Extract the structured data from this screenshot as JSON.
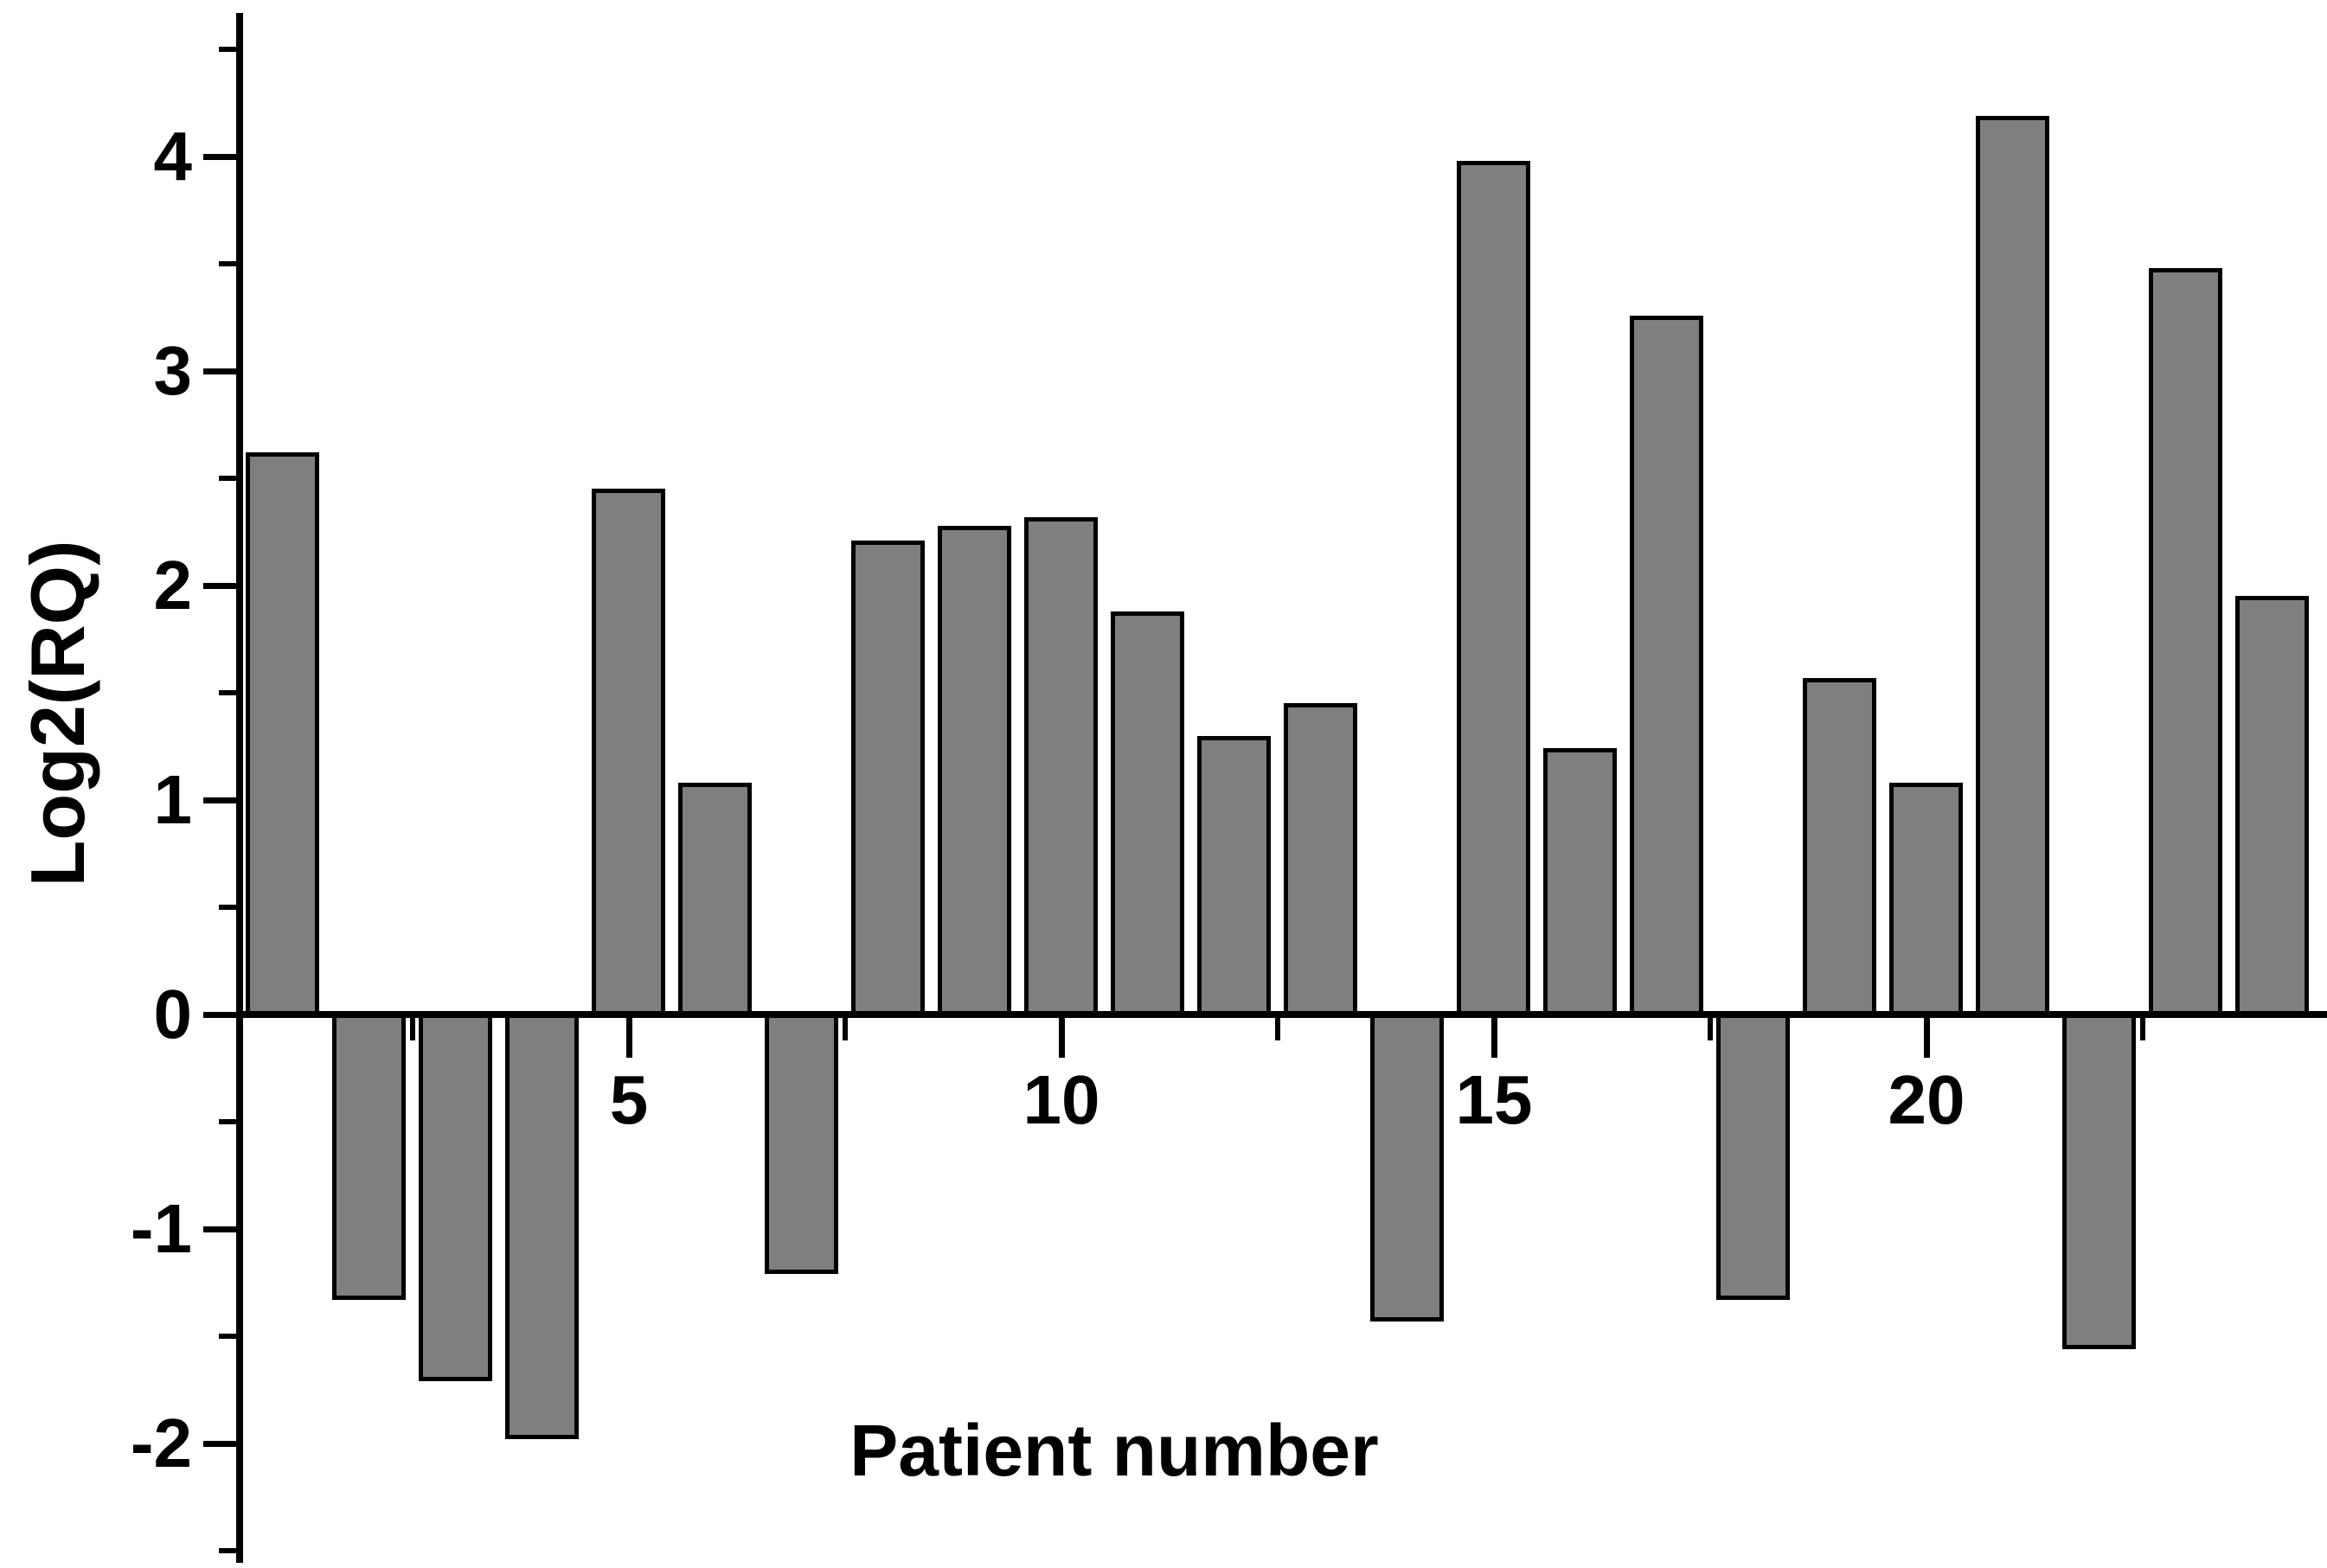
{
  "chart_data": {
    "type": "bar",
    "title": "",
    "xlabel": "Patient number",
    "ylabel": "Log2(RQ)",
    "categories": [
      1,
      2,
      3,
      4,
      5,
      6,
      7,
      8,
      9,
      10,
      11,
      12,
      13,
      14,
      15,
      16,
      17,
      18,
      19,
      20,
      21,
      22,
      23,
      24
    ],
    "values": [
      2.62,
      -1.33,
      -1.71,
      -1.98,
      2.45,
      1.08,
      -1.21,
      2.21,
      2.28,
      2.32,
      1.88,
      1.3,
      1.45,
      -1.43,
      3.98,
      1.24,
      3.26,
      -1.33,
      1.57,
      1.08,
      4.19,
      -1.56,
      3.48,
      1.95
    ],
    "ylim": [
      -2.55,
      4.67
    ],
    "xlim": [
      0.5,
      24.6
    ],
    "y_major_ticks": [
      -2,
      -1,
      0,
      1,
      2,
      3,
      4
    ],
    "y_tick_labels": [
      "-2",
      "-1",
      "0",
      "1",
      "2",
      "3",
      "4"
    ],
    "y_minor_ticks": [
      -2.5,
      -1.5,
      -0.5,
      0.5,
      1.5,
      2.5,
      3.5,
      4.5
    ],
    "x_major_ticks": [
      5,
      10,
      15,
      20
    ],
    "x_tick_labels": [
      "5",
      "10",
      "15",
      "20"
    ],
    "x_minor_ticks": [
      2.5,
      7.5,
      12.5,
      17.5,
      22.5
    ],
    "grid": false,
    "legend": null,
    "bar_fill_color": "#7f7f7f",
    "bar_edge_color": "#000000",
    "axis_color": "#000000",
    "background_color": "#ffffff"
  }
}
